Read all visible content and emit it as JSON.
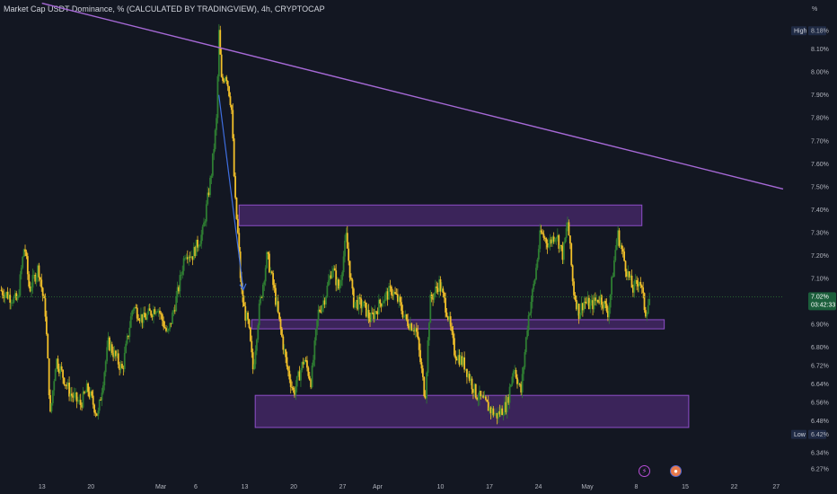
{
  "title": "Market Cap USDT Dominance, % (CALCULATED BY TRADINGVIEW), 4h, CRYPTOCAP",
  "unit_label": "%",
  "colors": {
    "background": "#131722",
    "up_candle": "#2e7d32",
    "down_candle": "#f2c029",
    "trendline": "#a669d6",
    "zone_fill": "#4a2a6e",
    "zone_border": "#8e4fc9",
    "arrow": "#3f6fe0"
  },
  "chart_data": {
    "type": "candlestick",
    "y_ticks": [
      "8.18%",
      "8.10%",
      "8.00%",
      "7.90%",
      "7.80%",
      "7.70%",
      "7.60%",
      "7.50%",
      "7.40%",
      "7.30%",
      "7.20%",
      "7.10%",
      "7.02%",
      "6.90%",
      "6.80%",
      "6.72%",
      "6.64%",
      "6.56%",
      "6.48%",
      "6.42%",
      "6.34%",
      "6.27%"
    ],
    "y_tick_values": [
      8.18,
      8.1,
      8.0,
      7.9,
      7.8,
      7.7,
      7.6,
      7.5,
      7.4,
      7.3,
      7.2,
      7.1,
      7.02,
      6.9,
      6.8,
      6.72,
      6.64,
      6.56,
      6.48,
      6.42,
      6.34,
      6.27
    ],
    "x_ticks": [
      "13",
      "20",
      "Mar",
      "6",
      "13",
      "20",
      "27",
      "Apr",
      "10",
      "17",
      "24",
      "May",
      "8",
      "15",
      "22",
      "27"
    ],
    "x_tick_days": [
      -17,
      -10,
      0,
      5,
      12,
      19,
      26,
      31,
      40,
      47,
      54,
      61,
      68,
      75,
      82,
      88
    ],
    "x_domain_days": [
      -23,
      89
    ],
    "y_domain": [
      6.25,
      8.22
    ],
    "high": {
      "label": "High",
      "value": "8.18%"
    },
    "low": {
      "label": "Low",
      "value": "6.42%"
    },
    "last": {
      "value": "7.02%",
      "countdown": "03:42:33"
    },
    "anchors": [
      [
        -23,
        7.05
      ],
      [
        -20.5,
        7.0
      ],
      [
        -19.5,
        7.25
      ],
      [
        -18.8,
        7.05
      ],
      [
        -17.5,
        7.15
      ],
      [
        -16.5,
        6.95
      ],
      [
        -15.8,
        6.5
      ],
      [
        -15,
        6.75
      ],
      [
        -13,
        6.6
      ],
      [
        -11.5,
        6.55
      ],
      [
        -10.5,
        6.62
      ],
      [
        -9,
        6.5
      ],
      [
        -7.5,
        6.82
      ],
      [
        -5.5,
        6.7
      ],
      [
        -4,
        6.98
      ],
      [
        -2.5,
        6.92
      ],
      [
        -0.5,
        6.98
      ],
      [
        1,
        6.85
      ],
      [
        2.5,
        7.05
      ],
      [
        3.5,
        7.22
      ],
      [
        4.5,
        7.2
      ],
      [
        6,
        7.3
      ],
      [
        7.2,
        7.55
      ],
      [
        8,
        7.8
      ],
      [
        8.3,
        8.18
      ],
      [
        8.7,
        7.95
      ],
      [
        9.3,
        8.0
      ],
      [
        10.1,
        7.85
      ],
      [
        10.6,
        7.45
      ],
      [
        11,
        7.3
      ],
      [
        11.5,
        7.05
      ],
      [
        12,
        6.95
      ],
      [
        12.5,
        6.9
      ],
      [
        13.2,
        6.7
      ],
      [
        14,
        6.95
      ],
      [
        15.2,
        7.2
      ],
      [
        16.2,
        7.05
      ],
      [
        17,
        6.9
      ],
      [
        18,
        6.72
      ],
      [
        19,
        6.6
      ],
      [
        20.5,
        6.75
      ],
      [
        21.5,
        6.65
      ],
      [
        22.5,
        6.95
      ],
      [
        23.5,
        7.02
      ],
      [
        24.5,
        7.15
      ],
      [
        25.5,
        7.05
      ],
      [
        26.5,
        7.28
      ],
      [
        27.5,
        7.0
      ],
      [
        29,
        6.98
      ],
      [
        30,
        6.92
      ],
      [
        31.5,
        7.0
      ],
      [
        33,
        7.05
      ],
      [
        34,
        7.0
      ],
      [
        35,
        6.92
      ],
      [
        36.5,
        6.88
      ],
      [
        37.8,
        6.58
      ],
      [
        38.5,
        7.0
      ],
      [
        39.8,
        7.08
      ],
      [
        41,
        6.95
      ],
      [
        42,
        6.78
      ],
      [
        43.5,
        6.72
      ],
      [
        45,
        6.6
      ],
      [
        46.5,
        6.55
      ],
      [
        48,
        6.5
      ],
      [
        49.5,
        6.55
      ],
      [
        50.5,
        6.72
      ],
      [
        51.5,
        6.6
      ],
      [
        52.5,
        6.92
      ],
      [
        53.5,
        7.1
      ],
      [
        54.3,
        7.3
      ],
      [
        55.5,
        7.25
      ],
      [
        56.5,
        7.3
      ],
      [
        57.5,
        7.2
      ],
      [
        58.2,
        7.35
      ],
      [
        59,
        7.05
      ],
      [
        59.8,
        6.95
      ],
      [
        60.5,
        7.0
      ],
      [
        61.5,
        6.98
      ],
      [
        62.8,
        7.02
      ],
      [
        64,
        6.95
      ],
      [
        65.3,
        7.3
      ],
      [
        66.5,
        7.15
      ],
      [
        67.5,
        7.05
      ],
      [
        68.5,
        7.1
      ],
      [
        69.3,
        6.95
      ],
      [
        70,
        7.02
      ]
    ],
    "trendline": [
      [
        -17,
        8.3
      ],
      [
        89,
        7.49
      ]
    ],
    "arrow": {
      "from": [
        8.3,
        7.9
      ],
      "to": [
        11.8,
        7.05
      ]
    },
    "zones": [
      {
        "x0": 11.2,
        "x1": 68.8,
        "y0": 7.33,
        "y1": 7.42
      },
      {
        "x0": 13,
        "x1": 72,
        "y0": 6.88,
        "y1": 6.92
      },
      {
        "x0": 13.5,
        "x1": 75.5,
        "y0": 6.45,
        "y1": 6.59
      }
    ]
  }
}
